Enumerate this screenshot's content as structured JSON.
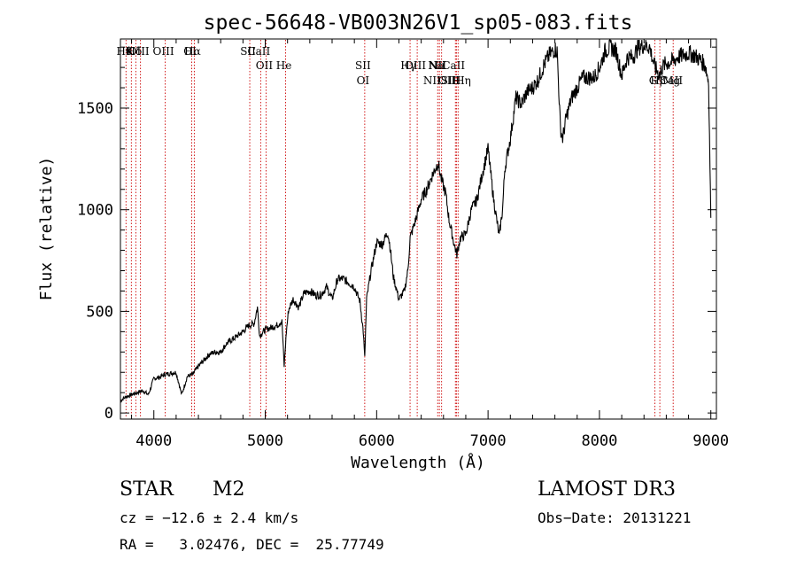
{
  "chart_data": {
    "type": "line",
    "title": "spec-56648-VB003N26V1_sp05-083.fits",
    "xlabel": "Wavelength (Å)",
    "ylabel": "Flux (relative)",
    "xlim": [
      3700,
      9050
    ],
    "ylim": [
      -30,
      1840
    ],
    "xticks": [
      4000,
      5000,
      6000,
      7000,
      8000,
      9000
    ],
    "xtick_labels": [
      "4000",
      "5000",
      "6000",
      "7000",
      "8000",
      "9000"
    ],
    "yticks": [
      0,
      500,
      1000,
      1500
    ],
    "ytick_labels": [
      "0",
      "500",
      "1000",
      "1500"
    ],
    "series": [
      {
        "name": "flux",
        "x": [
          3700,
          3750,
          3800,
          3850,
          3900,
          3950,
          4000,
          4050,
          4100,
          4150,
          4200,
          4250,
          4300,
          4350,
          4400,
          4450,
          4500,
          4550,
          4600,
          4650,
          4700,
          4750,
          4800,
          4850,
          4900,
          4930,
          4950,
          5000,
          5050,
          5100,
          5150,
          5170,
          5190,
          5210,
          5250,
          5300,
          5350,
          5400,
          5450,
          5500,
          5550,
          5600,
          5650,
          5700,
          5750,
          5800,
          5850,
          5880,
          5893,
          5910,
          5950,
          6000,
          6050,
          6100,
          6120,
          6150,
          6200,
          6250,
          6280,
          6300,
          6350,
          6400,
          6450,
          6500,
          6550,
          6563,
          6580,
          6620,
          6650,
          6700,
          6720,
          6750,
          6800,
          6850,
          6900,
          6950,
          7000,
          7050,
          7100,
          7130,
          7150,
          7200,
          7250,
          7300,
          7350,
          7400,
          7450,
          7500,
          7550,
          7600,
          7620,
          7650,
          7670,
          7700,
          7750,
          7800,
          7850,
          7900,
          7950,
          8000,
          8050,
          8100,
          8150,
          8200,
          8250,
          8300,
          8350,
          8400,
          8450,
          8498,
          8520,
          8542,
          8560,
          8600,
          8662,
          8700,
          8750,
          8800,
          8850,
          8900,
          8950,
          8980,
          9000
        ],
        "y": [
          60,
          80,
          90,
          100,
          110,
          90,
          170,
          175,
          190,
          195,
          200,
          90,
          180,
          190,
          230,
          260,
          290,
          300,
          300,
          340,
          360,
          380,
          400,
          430,
          440,
          520,
          380,
          410,
          420,
          430,
          450,
          230,
          400,
          510,
          560,
          520,
          590,
          600,
          580,
          580,
          620,
          560,
          660,
          660,
          640,
          620,
          550,
          400,
          270,
          560,
          700,
          840,
          830,
          890,
          820,
          670,
          560,
          600,
          700,
          860,
          950,
          1050,
          1100,
          1170,
          1230,
          1200,
          1150,
          1080,
          950,
          820,
          780,
          860,
          880,
          1000,
          1050,
          1180,
          1300,
          1050,
          870,
          1000,
          1200,
          1350,
          1550,
          1520,
          1580,
          1600,
          1640,
          1710,
          1760,
          1790,
          1780,
          1400,
          1350,
          1450,
          1550,
          1600,
          1650,
          1650,
          1650,
          1700,
          1780,
          1800,
          1780,
          1660,
          1750,
          1750,
          1800,
          1810,
          1800,
          1700,
          1680,
          1660,
          1700,
          1720,
          1730,
          1750,
          1760,
          1770,
          1760,
          1740,
          1710,
          1630,
          960
        ]
      }
    ],
    "lines": [
      {
        "wl": 3750,
        "label": "Hθ",
        "row": 1
      },
      {
        "wl": 3798,
        "label": "K",
        "row": 1
      },
      {
        "wl": 3838,
        "label": "Hδ",
        "row": 1
      },
      {
        "wl": 3880,
        "label": "OIII",
        "row": 1
      },
      {
        "wl": 4102,
        "label": "OIII",
        "row": 1
      },
      {
        "wl": 4340,
        "label": "OI",
        "row": 1
      },
      {
        "wl": 4363,
        "label": "Hα",
        "row": 1
      },
      {
        "wl": 4861,
        "label": "SII",
        "row": 1
      },
      {
        "wl": 4959,
        "label": "CaII",
        "row": 1
      },
      {
        "wl": 5007,
        "label": "OII",
        "row": 2
      },
      {
        "wl": 5183,
        "label": "He",
        "row": 2
      },
      {
        "wl": 5893,
        "label": "SII",
        "row": 2
      },
      {
        "wl": 6300,
        "label": "Hγ",
        "row": 2
      },
      {
        "wl": 6364,
        "label": "OIII",
        "row": 2
      },
      {
        "wl": 6548,
        "label": "Na",
        "row": 2
      },
      {
        "wl": 6563,
        "label": "NII",
        "row": 2
      },
      {
        "wl": 6583,
        "label": "Li",
        "row": 2
      },
      {
        "wl": 6707,
        "label": "CaII",
        "row": 2
      },
      {
        "wl": 6716,
        "label": "OIIHη",
        "row": 3
      },
      {
        "wl": 6731,
        "label": "H",
        "row": 3
      },
      {
        "wl": 8498,
        "label": "G",
        "row": 3
      },
      {
        "wl": 8542,
        "label": "Hβ",
        "row": 3
      },
      {
        "wl": 8662,
        "label": "Mg",
        "row": 3
      },
      {
        "wl": 5893,
        "label": "OI",
        "row": 3
      },
      {
        "wl": 6583,
        "label": "NIISII",
        "row": 3
      },
      {
        "wl": 8662,
        "label": "CaII",
        "row": 3
      }
    ]
  },
  "info": {
    "object_type": "STAR",
    "subclass": "M2",
    "survey": "LAMOST DR3",
    "cz": "cz = −12.6 ± 2.4 km/s",
    "obs_date": "Obs−Date: 20131221",
    "coords": "RA =   3.02476, DEC =  25.77749"
  }
}
